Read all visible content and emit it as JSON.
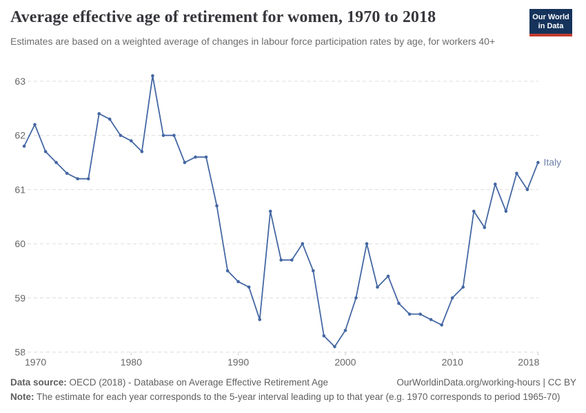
{
  "header": {
    "title": "Average effective age of retirement for women, 1970 to 2018",
    "subtitle": "Estimates are based on a weighted average of changes in labour force participation rates by age, for workers 40+",
    "logo": {
      "line1": "Our World",
      "line2": "in Data"
    }
  },
  "chart_data": {
    "type": "line",
    "title": "Average effective age of retirement for women, 1970 to 2018",
    "entity_label": "Italy",
    "xlabel": "",
    "ylabel": "",
    "x": [
      1970,
      1971,
      1972,
      1973,
      1974,
      1975,
      1976,
      1977,
      1978,
      1979,
      1980,
      1981,
      1982,
      1983,
      1984,
      1985,
      1986,
      1987,
      1988,
      1989,
      1990,
      1991,
      1992,
      1993,
      1994,
      1995,
      1996,
      1997,
      1998,
      1999,
      2000,
      2001,
      2002,
      2003,
      2004,
      2005,
      2006,
      2007,
      2008,
      2009,
      2010,
      2011,
      2012,
      2013,
      2014,
      2015,
      2016,
      2017,
      2018
    ],
    "values": [
      61.8,
      62.2,
      61.7,
      61.5,
      61.3,
      61.2,
      61.2,
      62.4,
      62.3,
      62.0,
      61.9,
      61.7,
      63.1,
      62.0,
      62.0,
      61.5,
      61.6,
      61.6,
      60.7,
      59.5,
      59.3,
      59.2,
      58.6,
      60.6,
      59.7,
      59.7,
      60.0,
      59.5,
      58.3,
      58.1,
      58.4,
      59.0,
      60.0,
      59.2,
      59.4,
      58.9,
      58.7,
      58.7,
      58.6,
      58.5,
      59.0,
      59.2,
      60.6,
      60.3,
      61.1,
      60.6,
      61.3,
      61.0,
      61.5
    ],
    "ylim": [
      58,
      63
    ],
    "xlim": [
      1970,
      2018
    ],
    "y_ticks": [
      58,
      59,
      60,
      61,
      62,
      63
    ],
    "x_ticks": [
      1970,
      1980,
      1990,
      2000,
      2010,
      2018
    ],
    "grid": true,
    "point_markers": true,
    "legend_position": "end-of-line-label",
    "line_color": "#4467a3",
    "entity_label_color": "#6d80a8",
    "grid_color": "#dcdcdc",
    "axis_text_color": "#666666"
  },
  "footer": {
    "datasource_label": "Data source:",
    "datasource_text": " OECD (2018) - Database on Average Effective Retirement Age",
    "link": "OurWorldinData.org/working-hours | CC BY",
    "note_label": "Note:",
    "note_text": " The estimate for each year corresponds to the 5-year interval leading up to that year (e.g. 1970 corresponds to period 1965-70)"
  }
}
